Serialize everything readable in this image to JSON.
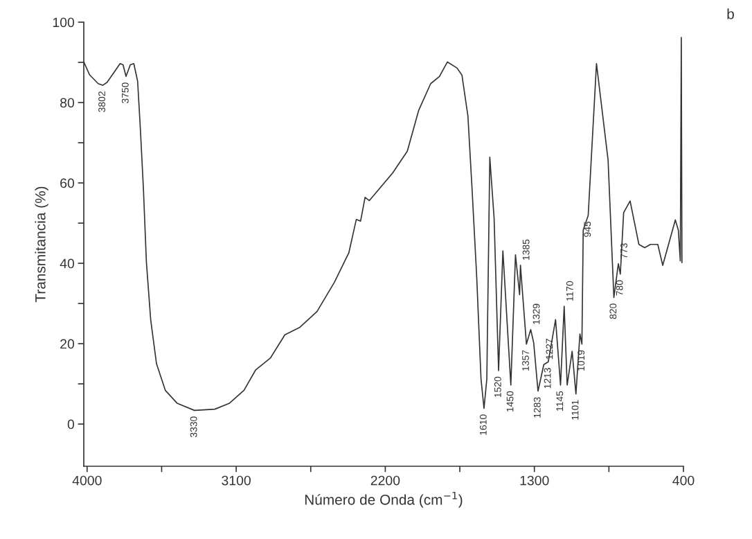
{
  "chart_data": {
    "type": "line",
    "xlabel": "Número de Onda (cm$^{−1}$)",
    "ylabel": "Transmitancia (%)",
    "xlim": [
      4020,
      400
    ],
    "ylim": [
      -10.5,
      100
    ],
    "xticks": [
      4000,
      {
        "value": 3550,
        "label": null
      },
      3100,
      {
        "value": 2650,
        "label": null
      },
      2200,
      {
        "value": 1750,
        "label": null
      },
      1300,
      {
        "value": 850,
        "label": null
      },
      400
    ],
    "yticks": [
      0,
      {
        "value": 10,
        "label": null
      },
      20,
      {
        "value": 30,
        "label": null
      },
      40,
      {
        "value": 50,
        "label": null
      },
      60,
      {
        "value": 70,
        "label": null
      },
      80,
      {
        "value": 90,
        "label": null
      },
      100
    ],
    "grid": false,
    "legend": false,
    "series": [
      {
        "color": "#333333",
        "x": [
          4020,
          3985,
          3933,
          3906,
          3880,
          3836,
          3801,
          3783,
          3765,
          3739,
          3718,
          3695,
          3678,
          3660,
          3642,
          3616,
          3581,
          3528,
          3457,
          3352,
          3229,
          3140,
          3053,
          2982,
          2894,
          2806,
          2718,
          2612,
          2507,
          2420,
          2375,
          2349,
          2322,
          2296,
          2155,
          2067,
          1998,
          1926,
          1873,
          1825,
          1767,
          1737,
          1701,
          1676,
          1648,
          1622,
          1604,
          1587,
          1569,
          1543,
          1516,
          1490,
          1442,
          1414,
          1389,
          1384,
          1348,
          1322,
          1304,
          1278,
          1243,
          1216,
          1172,
          1142,
          1120,
          1102,
          1072,
          1049,
          1025,
          1013,
          1005,
          975,
          925,
          855,
          820,
          793,
          781,
          761,
          722,
          669,
          634,
          599,
          555,
          525,
          449,
          431,
          419,
          413,
          409
        ],
        "values": [
          90.1,
          86.9,
          84.7,
          84.3,
          85,
          87.6,
          89.7,
          89.4,
          86.5,
          89.4,
          89.7,
          85.3,
          73.1,
          58.5,
          40.3,
          25.9,
          15,
          8.4,
          5.2,
          3.4,
          3.7,
          5.2,
          8.4,
          13.5,
          16.4,
          22.2,
          24,
          28,
          35.3,
          42.6,
          50.9,
          50.5,
          56.4,
          55.6,
          62.5,
          67.9,
          78.1,
          84.7,
          86.5,
          90.1,
          88.6,
          86.8,
          76.6,
          58.4,
          36.6,
          11.2,
          3.9,
          11.2,
          66.4,
          51.2,
          13.3,
          43.1,
          9.7,
          42.1,
          32.2,
          39.5,
          19.9,
          23.5,
          20.2,
          8.2,
          14.8,
          15.5,
          26,
          9.7,
          29.3,
          9.7,
          18.1,
          7.5,
          22.4,
          19.9,
          48.3,
          51.9,
          89.7,
          65.7,
          31.5,
          39.9,
          37.3,
          52.6,
          55.5,
          44.7,
          43.9,
          44.7,
          44.7,
          39.5,
          50.8,
          48.3,
          40.6,
          96.2,
          40.2
        ]
      }
    ],
    "annotations": [
      "b",
      {
        "text": "3802",
        "x": 3906,
        "y": 84.3
      },
      {
        "text": "3750",
        "x": 3765,
        "y": 86.5
      },
      {
        "text": "3330",
        "x": 3352,
        "y": 3.4
      },
      {
        "text": "1610",
        "x": 1604,
        "y": 3.9
      },
      {
        "text": "1520",
        "x": 1516,
        "y": 13.3
      },
      {
        "text": "1450",
        "x": 1442,
        "y": 9.7
      },
      {
        "text": "1385",
        "x": 1384,
        "y": 39.5
      },
      {
        "text": "1357",
        "x": 1348,
        "y": 19.9
      },
      {
        "text": "1329",
        "x": 1322,
        "y": 23.5
      },
      {
        "text": "1283",
        "x": 1278,
        "y": 8.2
      },
      {
        "text": "1227",
        "x": 1243,
        "y": 14.8
      },
      {
        "text": "1213",
        "x": 1216,
        "y": 15.5
      },
      {
        "text": "1170",
        "x": 1120,
        "y": 29.3
      },
      {
        "text": "1145",
        "x": 1142,
        "y": 9.7
      },
      {
        "text": "1101",
        "x": 1049,
        "y": 7.5
      },
      {
        "text": "1019",
        "x": 1013,
        "y": 19.9
      },
      {
        "text": "945",
        "x": 975,
        "y": 51.9
      },
      {
        "text": "820",
        "x": 820,
        "y": 31.5
      },
      {
        "text": "780",
        "x": 781,
        "y": 37.3
      },
      {
        "text": "773",
        "x": 793,
        "y": 39.9
      }
    ]
  }
}
